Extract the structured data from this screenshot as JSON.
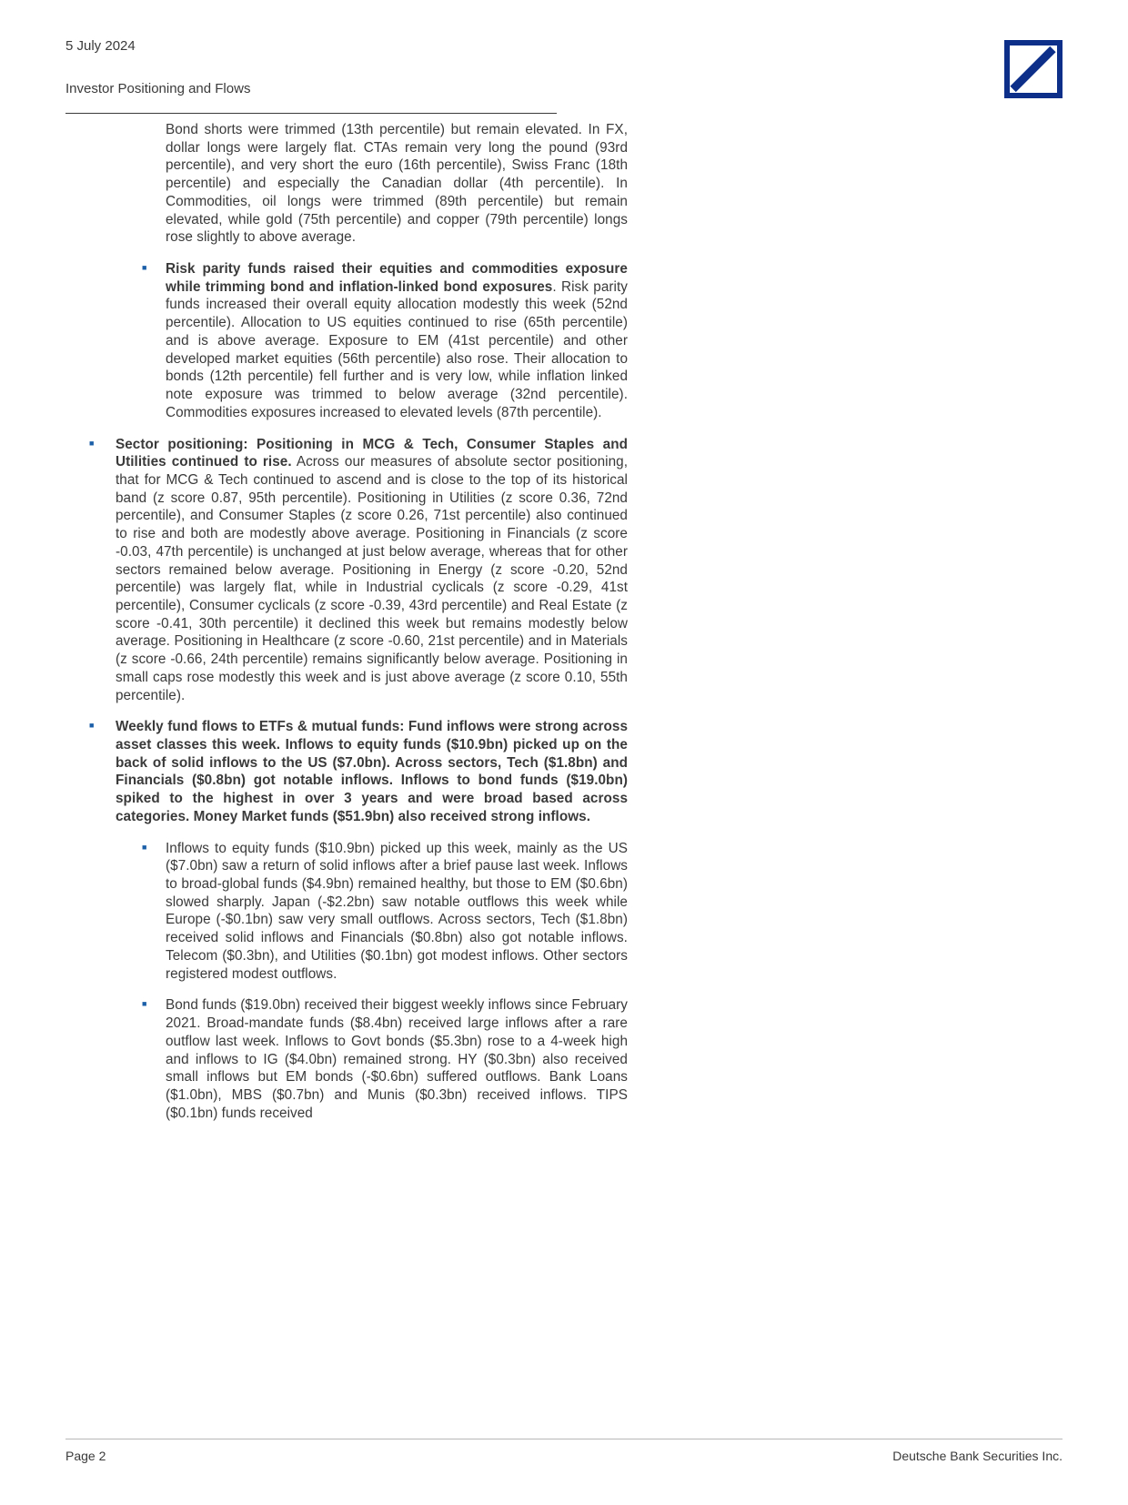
{
  "header": {
    "date": "5 July 2024",
    "title": "Investor Positioning and Flows"
  },
  "colors": {
    "bullet": "#1b5fa8",
    "logo": "#0d2f8a",
    "text": "#3a3a3a",
    "rule": "#3a3a3a",
    "footer_rule": "#b8b8b8",
    "background": "#ffffff"
  },
  "body": {
    "intro_para": "Bond shorts were trimmed (13th percentile) but remain elevated. In FX, dollar longs were largely flat. CTAs remain very long the pound (93rd percentile), and very short the euro (16th percentile), Swiss Franc (18th percentile) and especially the Canadian dollar (4th percentile). In Commodities, oil longs were trimmed (89th percentile) but remain elevated, while gold (75th percentile) and copper (79th percentile) longs rose slightly to above average.",
    "nested_item_1_bold": "Risk parity funds raised their equities and commodities exposure while trimming bond and inflation-linked bond exposures",
    "nested_item_1_rest": ". Risk parity funds increased their overall equity allocation modestly this week (52nd percentile). Allocation to US equities continued to rise (65th percentile) and is above average. Exposure to EM (41st percentile) and other developed market equities (56th percentile) also rose. Their allocation to bonds (12th percentile) fell further and is very low, while inflation linked note exposure was trimmed to below average (32nd percentile). Commodities exposures increased to elevated levels (87th percentile).",
    "outer_2_bold": "Sector positioning: Positioning in MCG & Tech, Consumer Staples and Utilities continued to rise.",
    "outer_2_rest": " Across our measures of absolute sector positioning, that for MCG & Tech continued to ascend and is close to the top of its historical band (z score 0.87, 95th percentile). Positioning in Utilities (z score 0.36, 72nd percentile), and Consumer Staples (z score 0.26, 71st percentile) also continued to rise and both are modestly above average. Positioning in Financials (z score -0.03, 47th percentile) is unchanged at just below average, whereas that for other sectors remained below average. Positioning in Energy (z score -0.20, 52nd percentile) was largely flat, while in Industrial cyclicals (z score -0.29, 41st percentile), Consumer cyclicals (z score -0.39, 43rd percentile) and Real Estate (z score -0.41, 30th percentile) it declined this week but remains modestly below average. Positioning in Healthcare (z score -0.60, 21st percentile) and in Materials (z score -0.66, 24th percentile) remains significantly below average. Positioning in small caps rose modestly this week and is just above average (z score 0.10, 55th percentile).",
    "outer_3_bold": "Weekly fund flows to ETFs & mutual funds: Fund inflows were strong across asset classes this week. Inflows to equity funds ($10.9bn) picked up on the back of solid inflows to the US ($7.0bn). Across sectors, Tech ($1.8bn) and Financials ($0.8bn) got notable inflows. Inflows to bond funds ($19.0bn) spiked to the highest in over 3 years and were broad based across categories. Money Market funds ($51.9bn) also received strong inflows.",
    "outer_3_nested_1": "Inflows to equity funds ($10.9bn) picked up this week, mainly as the US ($7.0bn) saw a return of solid inflows after a brief pause last week. Inflows to broad-global funds ($4.9bn) remained healthy, but those to EM ($0.6bn) slowed sharply. Japan (-$2.2bn) saw notable outflows this week while Europe (-$0.1bn) saw very small outflows. Across sectors, Tech ($1.8bn) received solid inflows and Financials ($0.8bn) also got notable inflows. Telecom ($0.3bn), and Utilities ($0.1bn) got modest inflows. Other sectors registered modest outflows.",
    "outer_3_nested_2": "Bond funds ($19.0bn) received their biggest weekly inflows since February 2021. Broad-mandate funds ($8.4bn) received large inflows after a rare outflow last week. Inflows to Govt bonds ($5.3bn) rose to a 4-week high and inflows to IG ($4.0bn) remained strong. HY ($0.3bn) also received small inflows but EM bonds (-$0.6bn) suffered outflows. Bank Loans ($1.0bn), MBS ($0.7bn) and Munis ($0.3bn) received inflows. TIPS ($0.1bn) funds received"
  },
  "footer": {
    "page": "Page 2",
    "entity": "Deutsche Bank Securities Inc."
  }
}
